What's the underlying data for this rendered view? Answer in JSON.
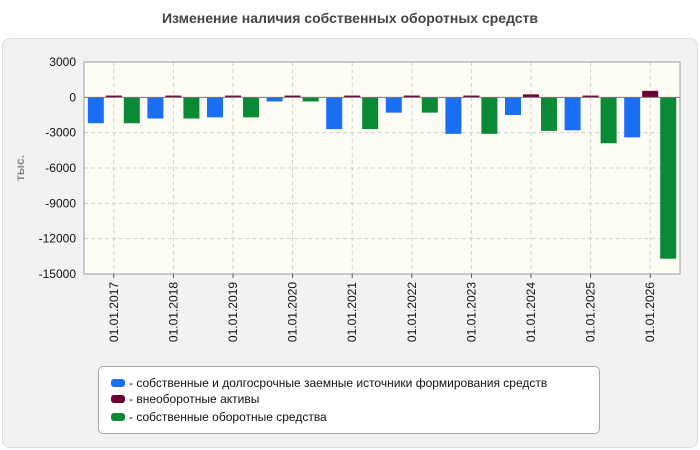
{
  "chart_data": {
    "type": "bar",
    "title": "Изменение наличия собственных оборотных средств",
    "ylabel": "тыс.",
    "xlabel": "",
    "categories": [
      "01.01.2017",
      "01.01.2018",
      "01.01.2019",
      "01.01.2020",
      "01.01.2021",
      "01.01.2022",
      "01.01.2023",
      "01.01.2024",
      "01.01.2025",
      "01.01.2026"
    ],
    "ylim": [
      -15000,
      3000
    ],
    "yticks": [
      3000,
      0,
      -3000,
      -6000,
      -9000,
      -12000,
      -15000
    ],
    "grid": true,
    "legend_position": "bottom",
    "series": [
      {
        "name": "- собственные и долгосрочные заемные источники формирования средств",
        "color": "#1a6ff5",
        "values": [
          -2200,
          -1800,
          -1700,
          -350,
          -2700,
          -1300,
          -3100,
          -1500,
          -2800,
          -3400
        ]
      },
      {
        "name": "- внеоборотные активы",
        "color": "#6b0033",
        "values": [
          150,
          150,
          150,
          150,
          150,
          150,
          150,
          250,
          150,
          550
        ]
      },
      {
        "name": "- собственные оборотные средства",
        "color": "#0a8a34",
        "values": [
          -2200,
          -1800,
          -1700,
          -350,
          -2700,
          -1300,
          -3100,
          -2850,
          -3900,
          -13700
        ]
      }
    ]
  }
}
